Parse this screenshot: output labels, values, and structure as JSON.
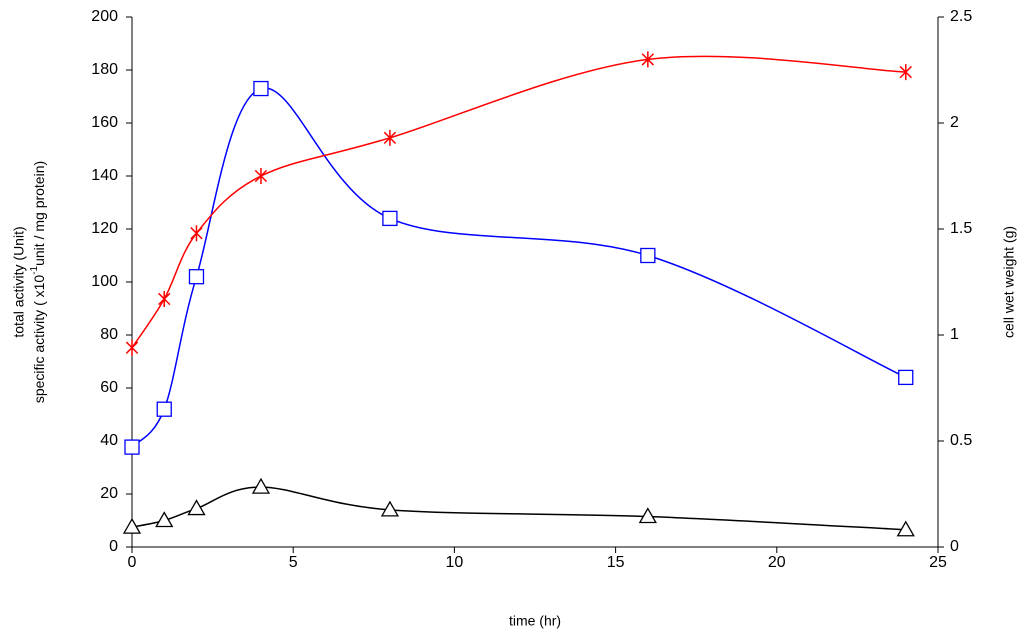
{
  "chart_data": {
    "type": "line",
    "xlabel": "time (hr)",
    "ylabel": {
      "line1": "total activity (Unit)",
      "line2": [
        "specific activity  ( x10",
        "-1",
        "unit / mg protein)"
      ]
    },
    "y2label": "cell wet weight (g)",
    "x": [
      0,
      1,
      2,
      4,
      8,
      16,
      24
    ],
    "series": [
      {
        "color": "#0000ff",
        "marker": "square",
        "values": [
          37.7,
          52,
          102,
          173,
          124,
          110,
          64
        ]
      },
      {
        "color": "#ff0000",
        "marker": "star",
        "axis": "y2",
        "values": [
          0.94,
          1.17,
          1.48,
          1.75,
          1.93,
          2.3,
          2.24
        ]
      },
      {
        "color": "#000000",
        "marker": "triangle",
        "values": [
          7.5,
          10,
          14.5,
          22.6,
          14,
          11.5,
          6.5
        ]
      }
    ],
    "xlim": [
      0,
      25
    ],
    "xticks": [
      0,
      5,
      10,
      15,
      20,
      25
    ],
    "ylim": [
      0,
      200
    ],
    "yticks": [
      0,
      20,
      40,
      60,
      80,
      100,
      120,
      140,
      160,
      180,
      200
    ],
    "y2lim": [
      0,
      2.5
    ],
    "y2ticks": [
      0,
      0.5,
      1,
      1.5,
      2,
      2.5
    ],
    "grid": false,
    "smooth": true
  }
}
